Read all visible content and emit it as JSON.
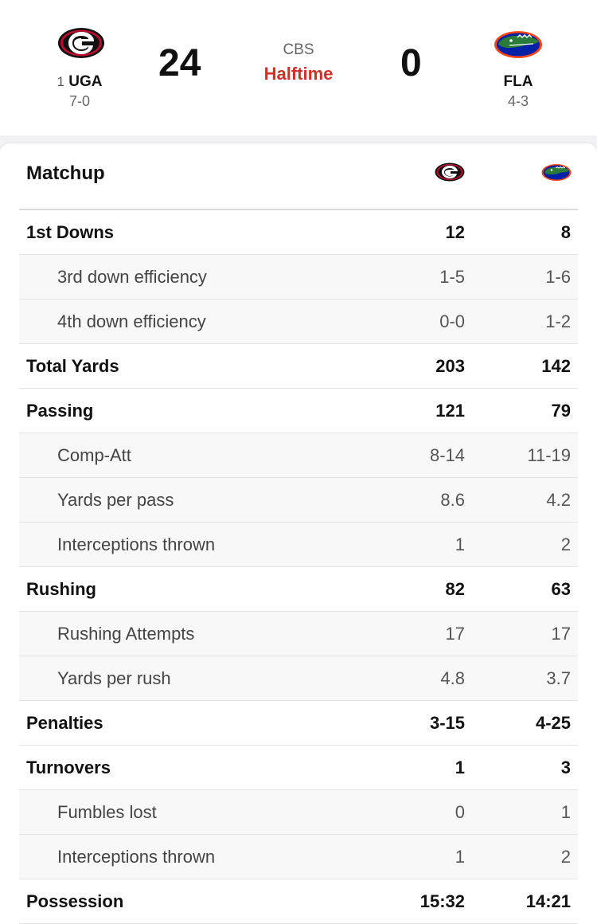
{
  "game": {
    "network": "CBS",
    "status": "Halftime",
    "home": {
      "rank": "1",
      "abbr": "UGA",
      "record": "7-0",
      "score": "24",
      "logo": "georgia-g-logo"
    },
    "away": {
      "rank": "",
      "abbr": "FLA",
      "record": "4-3",
      "score": "0",
      "logo": "florida-gator-logo"
    }
  },
  "colors": {
    "status": "#d0302a",
    "uga_red": "#ba0c2f",
    "fla_blue": "#0021a5",
    "fla_orange": "#fa4616",
    "gator_green": "#2a7a3a"
  },
  "matchup": {
    "title": "Matchup",
    "rows": [
      {
        "label": "1st Downs",
        "uga": "12",
        "fla": "8",
        "sub": false
      },
      {
        "label": "3rd down efficiency",
        "uga": "1-5",
        "fla": "1-6",
        "sub": true
      },
      {
        "label": "4th down efficiency",
        "uga": "0-0",
        "fla": "1-2",
        "sub": true
      },
      {
        "label": "Total Yards",
        "uga": "203",
        "fla": "142",
        "sub": false
      },
      {
        "label": "Passing",
        "uga": "121",
        "fla": "79",
        "sub": false
      },
      {
        "label": "Comp-Att",
        "uga": "8-14",
        "fla": "11-19",
        "sub": true
      },
      {
        "label": "Yards per pass",
        "uga": "8.6",
        "fla": "4.2",
        "sub": true
      },
      {
        "label": "Interceptions thrown",
        "uga": "1",
        "fla": "2",
        "sub": true
      },
      {
        "label": "Rushing",
        "uga": "82",
        "fla": "63",
        "sub": false
      },
      {
        "label": "Rushing Attempts",
        "uga": "17",
        "fla": "17",
        "sub": true
      },
      {
        "label": "Yards per rush",
        "uga": "4.8",
        "fla": "3.7",
        "sub": true
      },
      {
        "label": "Penalties",
        "uga": "3-15",
        "fla": "4-25",
        "sub": false
      },
      {
        "label": "Turnovers",
        "uga": "1",
        "fla": "3",
        "sub": false
      },
      {
        "label": "Fumbles lost",
        "uga": "0",
        "fla": "1",
        "sub": true
      },
      {
        "label": "Interceptions thrown",
        "uga": "1",
        "fla": "2",
        "sub": true
      },
      {
        "label": "Possession",
        "uga": "15:32",
        "fla": "14:21",
        "sub": false
      }
    ]
  }
}
